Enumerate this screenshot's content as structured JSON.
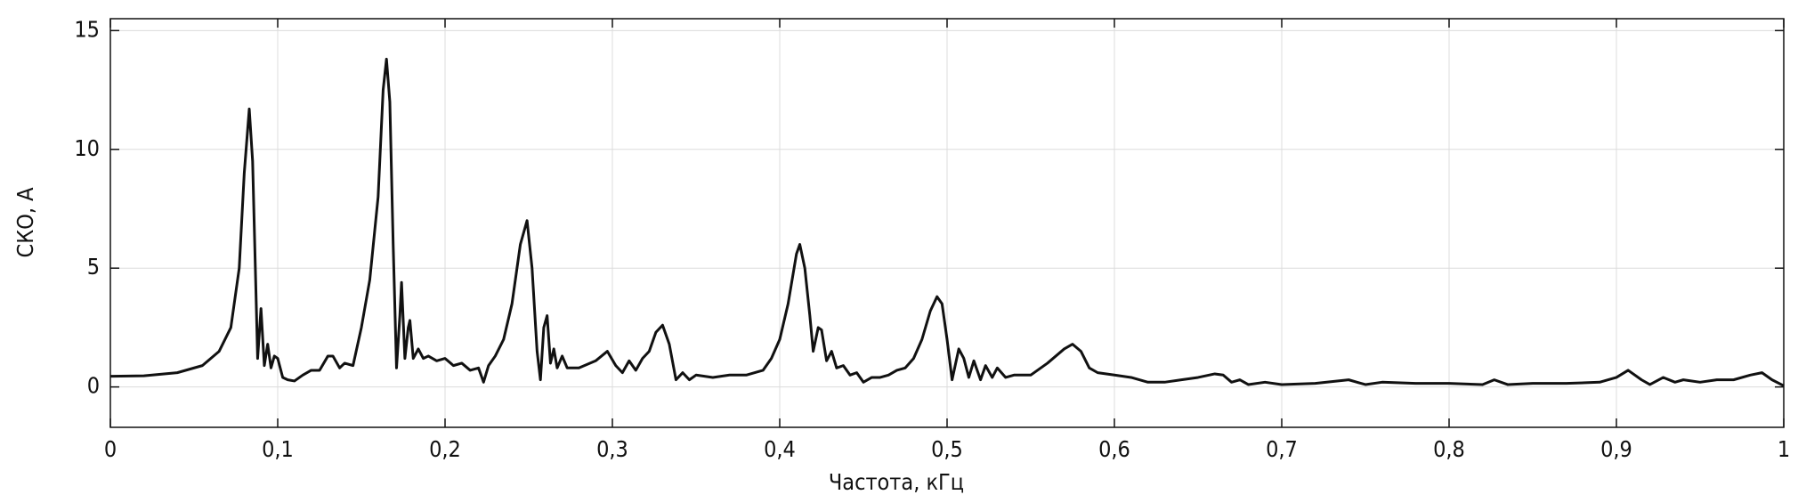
{
  "chart_data": {
    "type": "line",
    "x_label": "Частота, кГц",
    "y_label": "СКО, А",
    "x": [
      0,
      0.02,
      0.04,
      0.055,
      0.065,
      0.072,
      0.077,
      0.08,
      0.083,
      0.085,
      0.087,
      0.088,
      0.09,
      0.092,
      0.094,
      0.096,
      0.098,
      0.1,
      0.103,
      0.106,
      0.11,
      0.115,
      0.12,
      0.125,
      0.13,
      0.133,
      0.137,
      0.14,
      0.145,
      0.15,
      0.155,
      0.16,
      0.163,
      0.165,
      0.167,
      0.169,
      0.171,
      0.173,
      0.174,
      0.176,
      0.178,
      0.179,
      0.181,
      0.184,
      0.187,
      0.19,
      0.195,
      0.2,
      0.205,
      0.21,
      0.215,
      0.22,
      0.223,
      0.226,
      0.23,
      0.235,
      0.24,
      0.245,
      0.249,
      0.252,
      0.255,
      0.257,
      0.259,
      0.261,
      0.263,
      0.265,
      0.267,
      0.27,
      0.273,
      0.28,
      0.29,
      0.297,
      0.302,
      0.306,
      0.31,
      0.314,
      0.318,
      0.322,
      0.326,
      0.33,
      0.334,
      0.338,
      0.342,
      0.346,
      0.35,
      0.36,
      0.37,
      0.38,
      0.39,
      0.395,
      0.4,
      0.405,
      0.41,
      0.412,
      0.415,
      0.418,
      0.42,
      0.423,
      0.425,
      0.428,
      0.431,
      0.434,
      0.438,
      0.442,
      0.446,
      0.45,
      0.455,
      0.46,
      0.465,
      0.47,
      0.475,
      0.48,
      0.485,
      0.49,
      0.494,
      0.497,
      0.5,
      0.503,
      0.507,
      0.51,
      0.513,
      0.516,
      0.52,
      0.523,
      0.527,
      0.53,
      0.535,
      0.54,
      0.55,
      0.56,
      0.57,
      0.575,
      0.58,
      0.585,
      0.59,
      0.6,
      0.61,
      0.62,
      0.63,
      0.64,
      0.65,
      0.66,
      0.665,
      0.67,
      0.675,
      0.68,
      0.69,
      0.7,
      0.72,
      0.74,
      0.75,
      0.76,
      0.78,
      0.8,
      0.82,
      0.827,
      0.835,
      0.85,
      0.87,
      0.89,
      0.9,
      0.907,
      0.915,
      0.92,
      0.928,
      0.935,
      0.94,
      0.95,
      0.96,
      0.97,
      0.98,
      0.987,
      0.993,
      1.0
    ],
    "series": [
      {
        "color": "#111111",
        "values": [
          0.45,
          0.47,
          0.6,
          0.9,
          1.5,
          2.5,
          5,
          9,
          11.7,
          9.5,
          4,
          1.2,
          3.3,
          0.9,
          1.8,
          0.8,
          1.3,
          1.2,
          0.4,
          0.3,
          0.25,
          0.5,
          0.7,
          0.7,
          1.3,
          1.3,
          0.8,
          1.0,
          0.9,
          2.5,
          4.5,
          8,
          12.5,
          13.8,
          12,
          6,
          0.8,
          3,
          4.4,
          1.2,
          2.5,
          2.8,
          1.2,
          1.6,
          1.2,
          1.3,
          1.1,
          1.2,
          0.9,
          1.0,
          0.7,
          0.8,
          0.2,
          0.9,
          1.3,
          2,
          3.5,
          6,
          7.0,
          5,
          1.5,
          0.3,
          2.5,
          3.0,
          1,
          1.6,
          0.8,
          1.3,
          0.8,
          0.8,
          1.1,
          1.5,
          0.9,
          0.6,
          1.1,
          0.7,
          1.2,
          1.5,
          2.3,
          2.6,
          1.8,
          0.3,
          0.6,
          0.3,
          0.5,
          0.4,
          0.5,
          0.5,
          0.7,
          1.2,
          2,
          3.5,
          5.6,
          6.0,
          5,
          3,
          1.5,
          2.5,
          2.4,
          1.1,
          1.5,
          0.8,
          0.9,
          0.5,
          0.6,
          0.2,
          0.4,
          0.4,
          0.5,
          0.7,
          0.8,
          1.2,
          2,
          3.2,
          3.8,
          3.5,
          2,
          0.3,
          1.6,
          1.2,
          0.4,
          1.1,
          0.3,
          0.9,
          0.4,
          0.8,
          0.4,
          0.5,
          0.5,
          1.0,
          1.6,
          1.8,
          1.5,
          0.8,
          0.6,
          0.5,
          0.4,
          0.2,
          0.2,
          0.3,
          0.4,
          0.55,
          0.5,
          0.2,
          0.3,
          0.1,
          0.2,
          0.1,
          0.15,
          0.3,
          0.1,
          0.2,
          0.15,
          0.15,
          0.1,
          0.3,
          0.1,
          0.15,
          0.15,
          0.2,
          0.4,
          0.7,
          0.3,
          0.1,
          0.4,
          0.2,
          0.3,
          0.2,
          0.3,
          0.3,
          0.5,
          0.6,
          0.3,
          0.05
        ]
      }
    ],
    "xlim": [
      0,
      1
    ],
    "ylim": [
      -1.7,
      15.5
    ],
    "xticks": [
      0,
      {
        "value": 0.1,
        "label": "0,1"
      },
      {
        "value": 0.2,
        "label": "0,2"
      },
      {
        "value": 0.3,
        "label": "0,3"
      },
      {
        "value": 0.4,
        "label": "0,4"
      },
      {
        "value": 0.5,
        "label": "0,5"
      },
      {
        "value": 0.6,
        "label": "0,6"
      },
      {
        "value": 0.7,
        "label": "0,7"
      },
      {
        "value": 0.8,
        "label": "0,8"
      },
      {
        "value": 0.9,
        "label": "0,9"
      },
      1
    ],
    "yticks": [
      0,
      5,
      10,
      15
    ],
    "grid": true
  }
}
